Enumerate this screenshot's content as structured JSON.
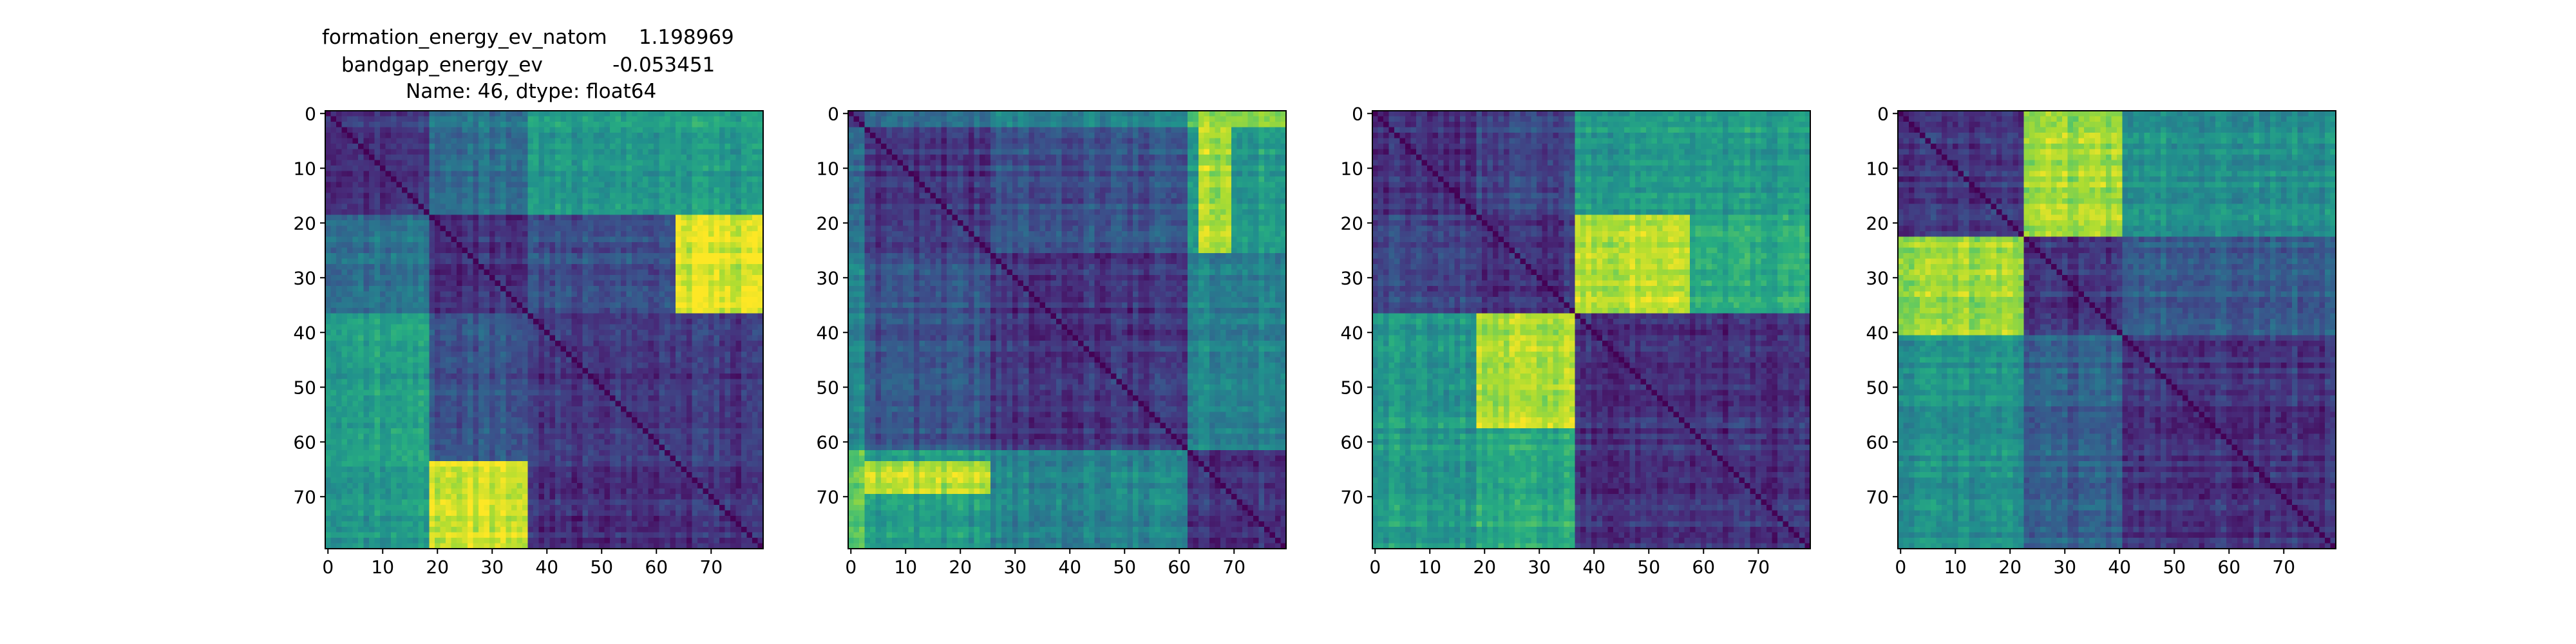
{
  "figure": {
    "title_lines": [
      "formation_energy_ev_natom     1.198969",
      "bandgap_energy_ev           -0.053451",
      "Name: 46, dtype: float64"
    ]
  },
  "chart_data": [
    {
      "type": "heatmap",
      "n": 80,
      "xlim": [
        -0.5,
        79.5
      ],
      "ylim": [
        79.5,
        -0.5
      ],
      "xticks": [
        0,
        10,
        20,
        30,
        40,
        50,
        60,
        70
      ],
      "yticks": [
        0,
        10,
        20,
        30,
        40,
        50,
        60,
        70
      ],
      "colormap": "viridis",
      "blocks": [
        0,
        19,
        37,
        80
      ],
      "block_means": [
        [
          0.15,
          0.38,
          0.55
        ],
        [
          0.38,
          0.15,
          0.25
        ],
        [
          0.55,
          0.25,
          0.15
        ]
      ],
      "hot_regions": [
        {
          "rows": [
            19,
            37
          ],
          "cols": [
            64,
            80
          ],
          "value": 0.95
        },
        {
          "rows": [
            64,
            80
          ],
          "cols": [
            19,
            37
          ],
          "value": 0.95
        }
      ]
    },
    {
      "type": "heatmap",
      "n": 80,
      "xlim": [
        -0.5,
        79.5
      ],
      "ylim": [
        79.5,
        -0.5
      ],
      "xticks": [
        0,
        10,
        20,
        30,
        40,
        50,
        60,
        70
      ],
      "yticks": [
        0,
        10,
        20,
        30,
        40,
        50,
        60,
        70
      ],
      "colormap": "viridis",
      "blocks": [
        0,
        3,
        26,
        62,
        80
      ],
      "block_means": [
        [
          0.15,
          0.35,
          0.45,
          0.75
        ],
        [
          0.35,
          0.15,
          0.25,
          0.55
        ],
        [
          0.45,
          0.25,
          0.15,
          0.45
        ],
        [
          0.75,
          0.55,
          0.45,
          0.15
        ]
      ],
      "hot_regions": [
        {
          "rows": [
            64,
            70
          ],
          "cols": [
            3,
            26
          ],
          "value": 0.88
        },
        {
          "rows": [
            3,
            26
          ],
          "cols": [
            64,
            70
          ],
          "value": 0.88
        },
        {
          "rows": [
            0,
            3
          ],
          "cols": [
            64,
            80
          ],
          "value": 0.85
        }
      ]
    },
    {
      "type": "heatmap",
      "n": 80,
      "xlim": [
        -0.5,
        79.5
      ],
      "ylim": [
        79.5,
        -0.5
      ],
      "xticks": [
        0,
        10,
        20,
        30,
        40,
        50,
        60,
        70
      ],
      "yticks": [
        0,
        10,
        20,
        30,
        40,
        50,
        60,
        70
      ],
      "colormap": "viridis",
      "blocks": [
        0,
        19,
        37,
        80
      ],
      "block_means": [
        [
          0.15,
          0.22,
          0.55
        ],
        [
          0.22,
          0.15,
          0.62
        ],
        [
          0.55,
          0.62,
          0.15
        ]
      ],
      "hot_regions": [
        {
          "rows": [
            19,
            37
          ],
          "cols": [
            37,
            58
          ],
          "value": 0.9
        },
        {
          "rows": [
            37,
            58
          ],
          "cols": [
            19,
            37
          ],
          "value": 0.9
        }
      ]
    },
    {
      "type": "heatmap",
      "n": 80,
      "xlim": [
        -0.5,
        79.5
      ],
      "ylim": [
        79.5,
        -0.5
      ],
      "xticks": [
        0,
        10,
        20,
        30,
        40,
        50,
        60,
        70
      ],
      "yticks": [
        0,
        10,
        20,
        30,
        40,
        50,
        60,
        70
      ],
      "colormap": "viridis",
      "blocks": [
        0,
        23,
        41,
        80
      ],
      "block_means": [
        [
          0.15,
          0.75,
          0.5
        ],
        [
          0.75,
          0.15,
          0.3
        ],
        [
          0.5,
          0.3,
          0.15
        ]
      ],
      "hot_regions": [
        {
          "rows": [
            0,
            23
          ],
          "cols": [
            23,
            41
          ],
          "value": 0.85
        },
        {
          "rows": [
            23,
            41
          ],
          "cols": [
            0,
            23
          ],
          "value": 0.85
        }
      ]
    }
  ]
}
